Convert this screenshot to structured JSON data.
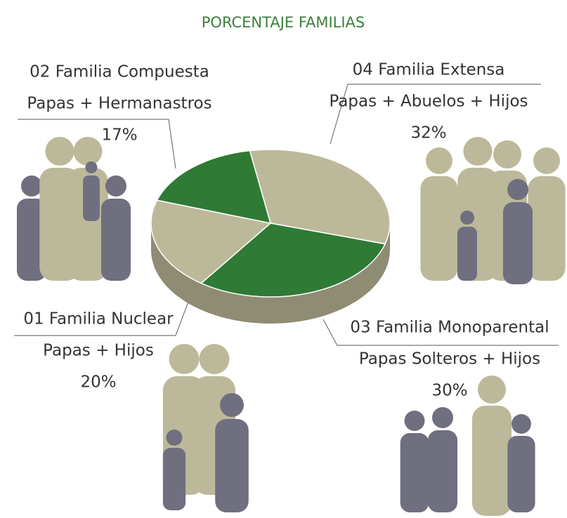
{
  "chart_data": {
    "type": "pie",
    "title": "PORCENTAJE FAMILIAS",
    "categories": [
      "04 Familia Extensa",
      "03 Familia Monoparental",
      "01 Familia Nuclear",
      "02 Familia Compuesta"
    ],
    "descriptions": [
      "Papas + Abuelos + Hijos",
      "Papas Solteros + Hijos",
      "Papas + Hijos",
      "Papas + Hermanastros"
    ],
    "values": [
      32,
      30,
      20,
      17
    ],
    "value_labels": [
      "32%",
      "30%",
      "20%",
      "17%"
    ],
    "colors": [
      "#bcb99a",
      "#2f7a34",
      "#bcb99a",
      "#2f7a34"
    ]
  }
}
